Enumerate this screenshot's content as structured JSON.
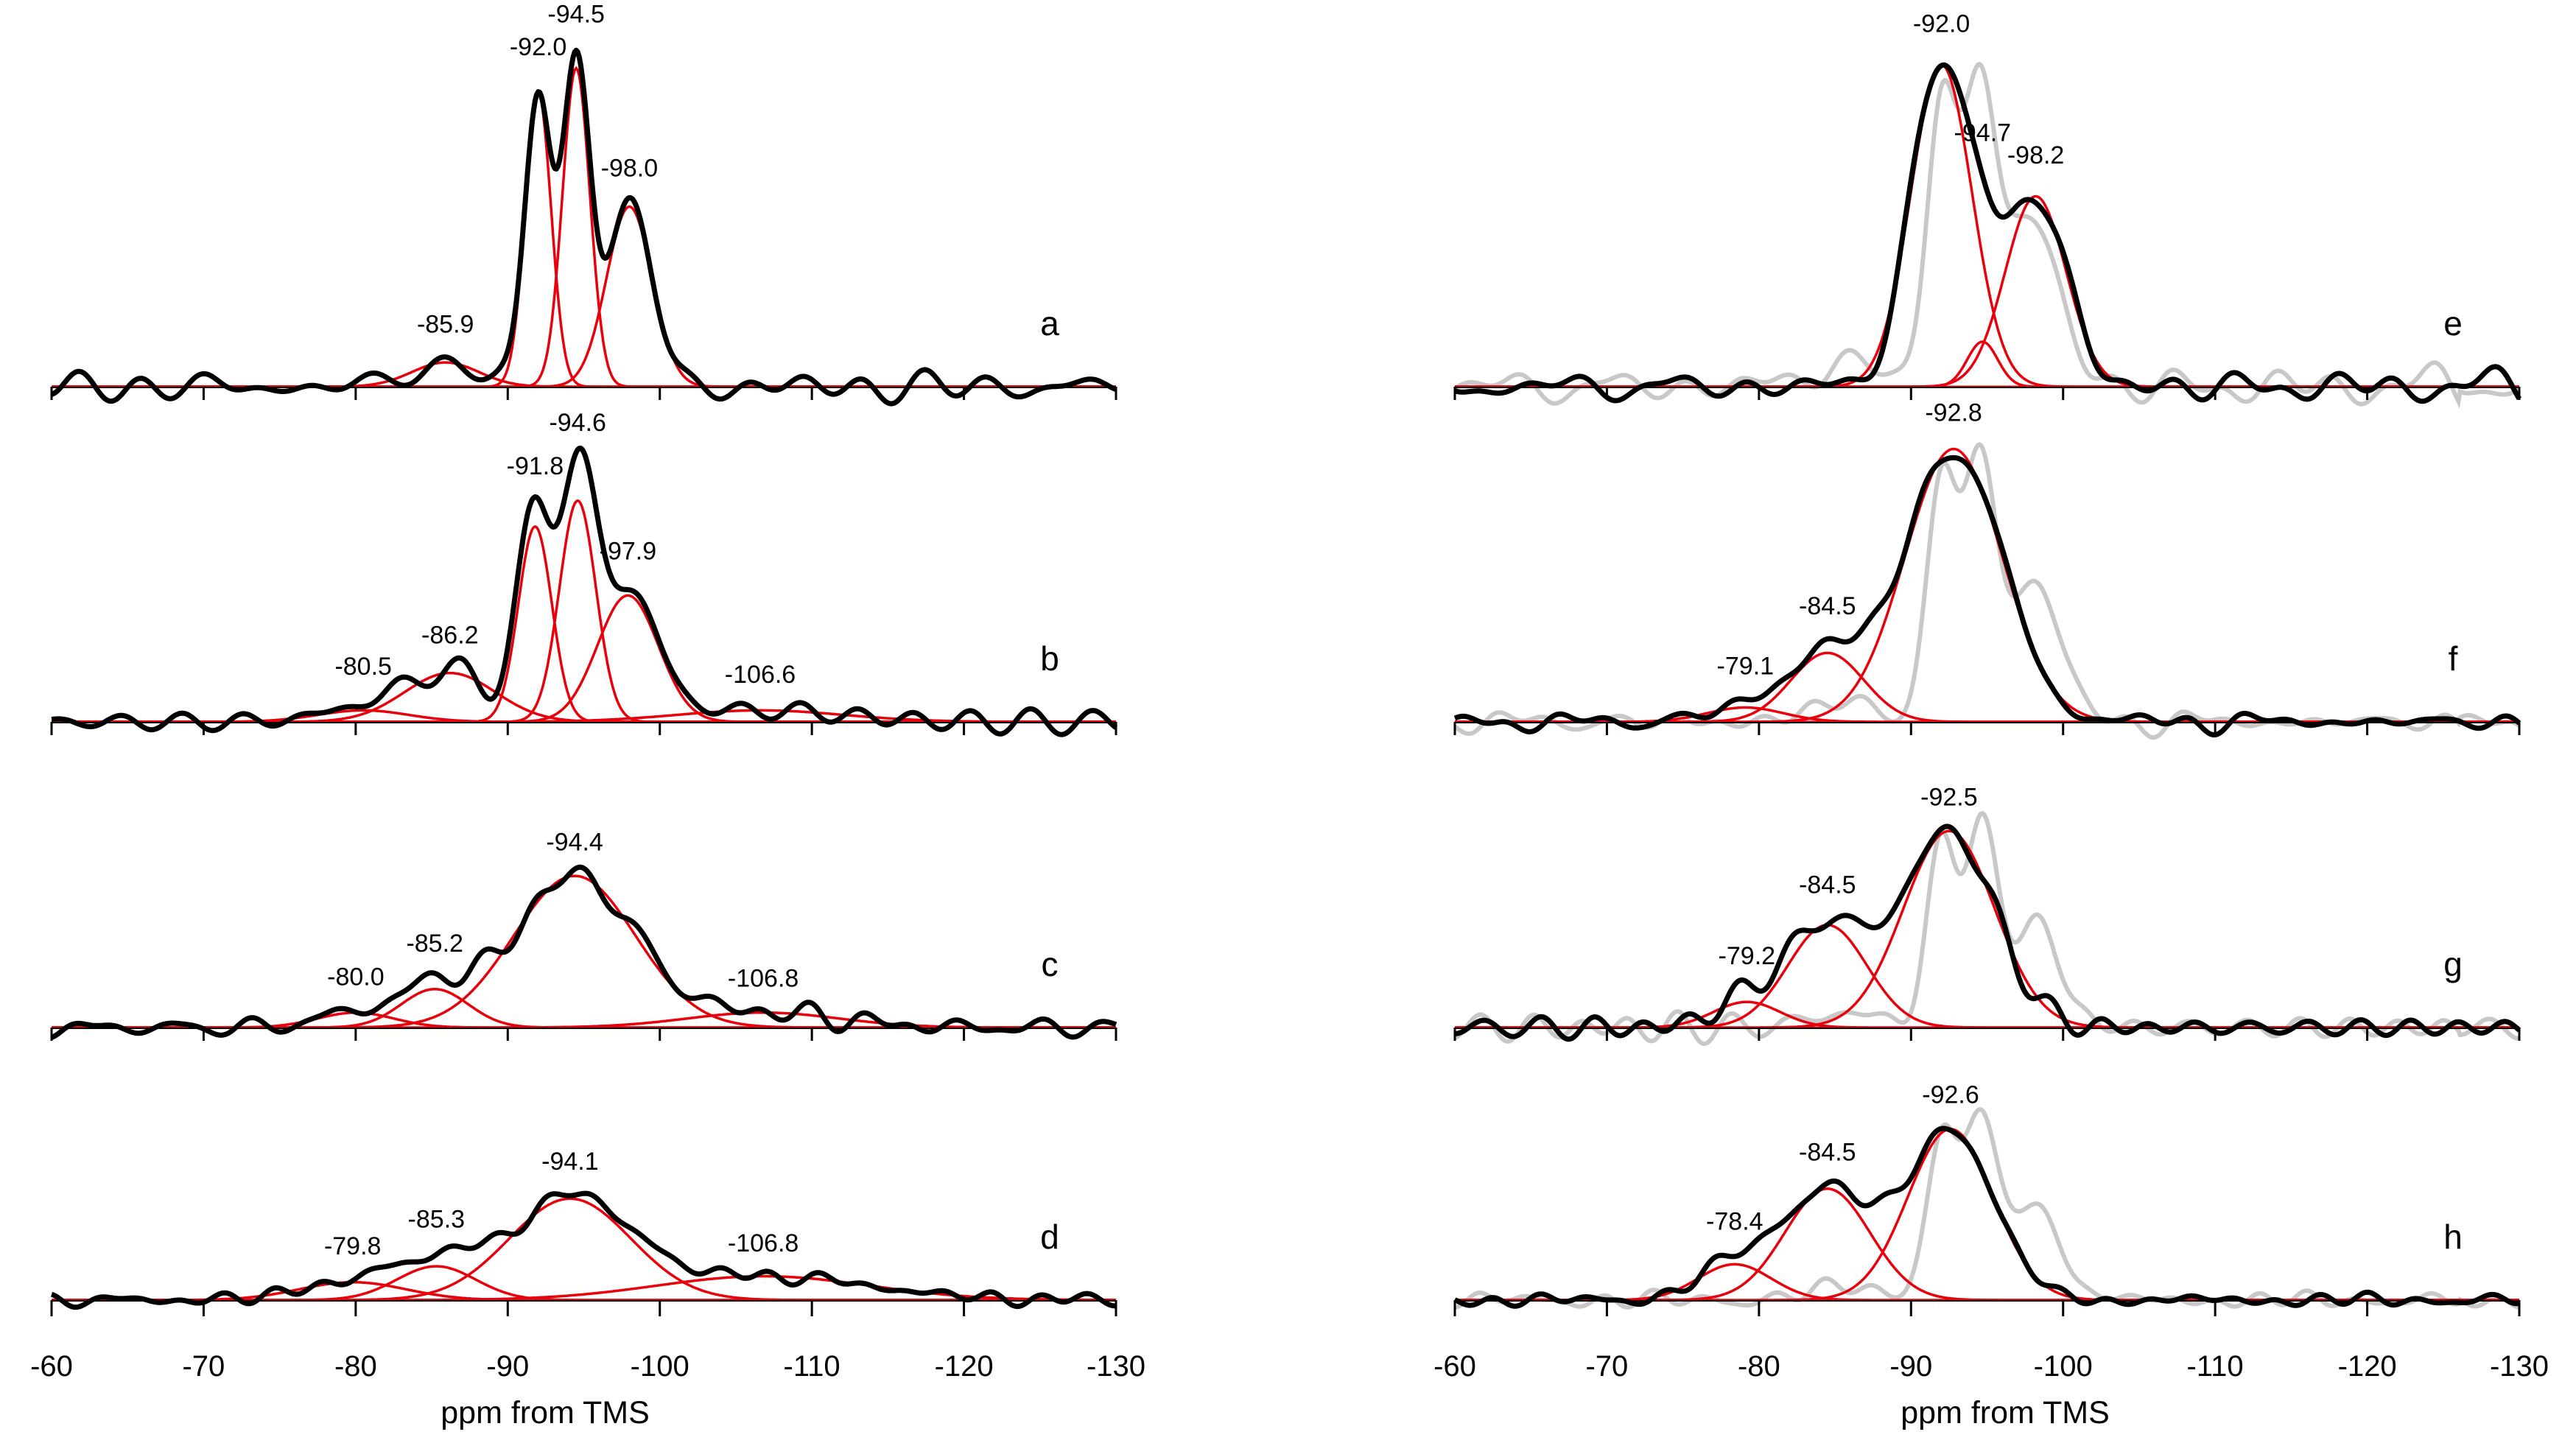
{
  "chart_data": [
    {
      "type": "line",
      "xlabel": "ppm from TMS",
      "xlim": [
        -60,
        -130
      ],
      "xticks": [
        -60,
        -70,
        -80,
        -90,
        -100,
        -110,
        -120,
        -130
      ],
      "colors": {
        "experimental": "#000000",
        "components": "#e8000b",
        "reference": "#c8c8c8"
      },
      "panels": [
        {
          "label": "a",
          "components": [
            {
              "center": -85.9,
              "amp": 0.07,
              "width": 2.2,
              "shown_label": "-85.9"
            },
            {
              "center": -92.0,
              "amp": 0.85,
              "width": 0.85,
              "shown_label": "-92.0"
            },
            {
              "center": -94.5,
              "amp": 0.92,
              "width": 0.9,
              "shown_label": "-94.5"
            },
            {
              "center": -98.0,
              "amp": 0.52,
              "width": 1.5,
              "shown_label": "-98.0"
            }
          ]
        },
        {
          "label": "b",
          "components": [
            {
              "center": -80.5,
              "amp": 0.04,
              "width": 3.0,
              "shown_label": "-80.5"
            },
            {
              "center": -86.2,
              "amp": 0.17,
              "width": 3.0,
              "shown_label": "-86.2"
            },
            {
              "center": -91.8,
              "amp": 0.68,
              "width": 1.1,
              "shown_label": "-91.8"
            },
            {
              "center": -94.6,
              "amp": 0.77,
              "width": 1.2,
              "shown_label": "-94.6"
            },
            {
              "center": -97.9,
              "amp": 0.44,
              "width": 2.0,
              "shown_label": "-97.9"
            },
            {
              "center": -106.6,
              "amp": 0.04,
              "width": 5.5,
              "shown_label": "-106.6"
            }
          ]
        },
        {
          "label": "c",
          "components": [
            {
              "center": -80.0,
              "amp": 0.07,
              "width": 2.5,
              "shown_label": "-80.0"
            },
            {
              "center": -85.2,
              "amp": 0.18,
              "width": 2.2,
              "shown_label": "-85.2"
            },
            {
              "center": -94.4,
              "amp": 0.71,
              "width": 4.0,
              "shown_label": "-94.4"
            },
            {
              "center": -106.8,
              "amp": 0.07,
              "width": 5.0,
              "shown_label": "-106.8"
            }
          ]
        },
        {
          "label": "d",
          "components": [
            {
              "center": -79.8,
              "amp": 0.09,
              "width": 3.5,
              "shown_label": "-79.8"
            },
            {
              "center": -85.3,
              "amp": 0.17,
              "width": 2.6,
              "shown_label": "-85.3"
            },
            {
              "center": -94.1,
              "amp": 0.51,
              "width": 4.0,
              "shown_label": "-94.1"
            },
            {
              "center": -106.8,
              "amp": 0.12,
              "width": 7.0,
              "shown_label": "-106.8"
            }
          ]
        },
        {
          "label": "e",
          "components": [
            {
              "center": -92.0,
              "amp": 0.93,
              "width": 2.0,
              "shown_label": "-92.0"
            },
            {
              "center": -94.7,
              "amp": 0.13,
              "width": 1.0,
              "shown_label": "-94.7"
            },
            {
              "center": -98.2,
              "amp": 0.55,
              "width": 2.0,
              "shown_label": "-98.2"
            }
          ]
        },
        {
          "label": "f",
          "components": [
            {
              "center": -79.1,
              "amp": 0.05,
              "width": 2.5,
              "shown_label": "-79.1"
            },
            {
              "center": -84.5,
              "amp": 0.24,
              "width": 2.4,
              "shown_label": "-84.5"
            },
            {
              "center": -92.8,
              "amp": 0.95,
              "width": 3.2,
              "shown_label": "-92.8"
            }
          ]
        },
        {
          "label": "g",
          "components": [
            {
              "center": -79.2,
              "amp": 0.12,
              "width": 2.2,
              "shown_label": "-79.2"
            },
            {
              "center": -84.5,
              "amp": 0.48,
              "width": 2.6,
              "shown_label": "-84.5"
            },
            {
              "center": -92.5,
              "amp": 0.92,
              "width": 3.0,
              "shown_label": "-92.5"
            }
          ]
        },
        {
          "label": "h",
          "components": [
            {
              "center": -78.4,
              "amp": 0.18,
              "width": 2.4,
              "shown_label": "-78.4"
            },
            {
              "center": -84.5,
              "amp": 0.56,
              "width": 2.8,
              "shown_label": "-84.5"
            },
            {
              "center": -92.6,
              "amp": 0.86,
              "width": 2.8,
              "shown_label": "-92.6"
            }
          ]
        }
      ]
    }
  ]
}
